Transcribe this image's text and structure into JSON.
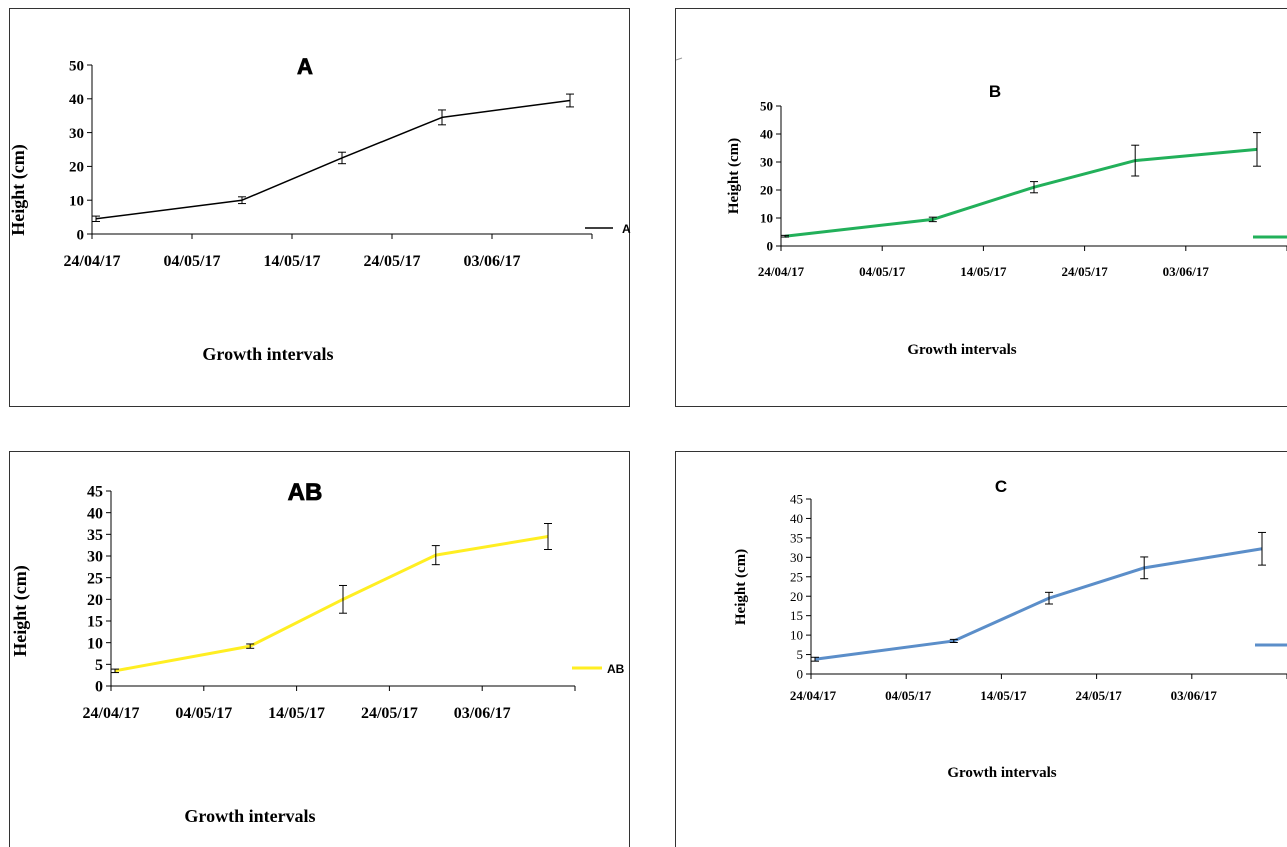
{
  "chart_data": [
    {
      "type": "line",
      "title": "A",
      "xlabel": "Growth intervals",
      "ylabel": "Height (cm)",
      "categories": [
        "24/04/17",
        "04/05/17",
        "14/05/17",
        "24/05/17",
        "03/06/17"
      ],
      "ylim": [
        0,
        50
      ],
      "yticks": [
        0,
        10,
        20,
        30,
        40,
        50
      ],
      "grid": false,
      "legend": "right",
      "series": [
        {
          "name": "A",
          "color": "#000000",
          "values": [
            4.5,
            10,
            22.5,
            34.5,
            39.5
          ],
          "errors": [
            0.8,
            1.0,
            1.7,
            2.2,
            1.9
          ]
        }
      ]
    },
    {
      "type": "line",
      "title": "B",
      "xlabel": "Growth intervals",
      "ylabel": "Height (cm)",
      "categories": [
        "24/04/17",
        "04/05/17",
        "14/05/17",
        "24/05/17",
        "03/06/17"
      ],
      "ylim": [
        0,
        50
      ],
      "yticks": [
        0,
        10,
        20,
        30,
        40,
        50
      ],
      "grid": false,
      "legend": "right",
      "series": [
        {
          "name": "",
          "color": "#22b05a",
          "values": [
            3.5,
            9.5,
            21,
            30.5,
            34.5
          ],
          "errors": [
            0.3,
            0.8,
            2.0,
            5.5,
            6.0
          ]
        }
      ]
    },
    {
      "type": "line",
      "title": "AB",
      "xlabel": "Growth intervals",
      "ylabel": "Height (cm)",
      "categories": [
        "24/04/17",
        "04/05/17",
        "14/05/17",
        "24/05/17",
        "03/06/17"
      ],
      "ylim": [
        0,
        45
      ],
      "yticks": [
        0,
        5,
        10,
        15,
        20,
        25,
        30,
        35,
        40,
        45
      ],
      "grid": false,
      "legend": "right",
      "series": [
        {
          "name": "AB",
          "color": "#ffee22",
          "values": [
            3.5,
            9.2,
            20,
            30.2,
            34.5
          ],
          "errors": [
            0.4,
            0.5,
            3.2,
            2.2,
            3.0
          ]
        }
      ]
    },
    {
      "type": "line",
      "title": "C",
      "xlabel": "Growth intervals",
      "ylabel": "Height (cm)",
      "categories": [
        "24/04/17",
        "04/05/17",
        "14/05/17",
        "24/05/17",
        "03/06/17"
      ],
      "ylim": [
        0,
        45
      ],
      "yticks": [
        0,
        5,
        10,
        15,
        20,
        25,
        30,
        35,
        40,
        45
      ],
      "grid": false,
      "legend": "right",
      "series": [
        {
          "name": "",
          "color": "#5b8ec9",
          "values": [
            3.8,
            8.5,
            19.5,
            27.3,
            32.2
          ],
          "errors": [
            0.5,
            0.4,
            1.5,
            2.8,
            4.2
          ]
        }
      ]
    }
  ]
}
